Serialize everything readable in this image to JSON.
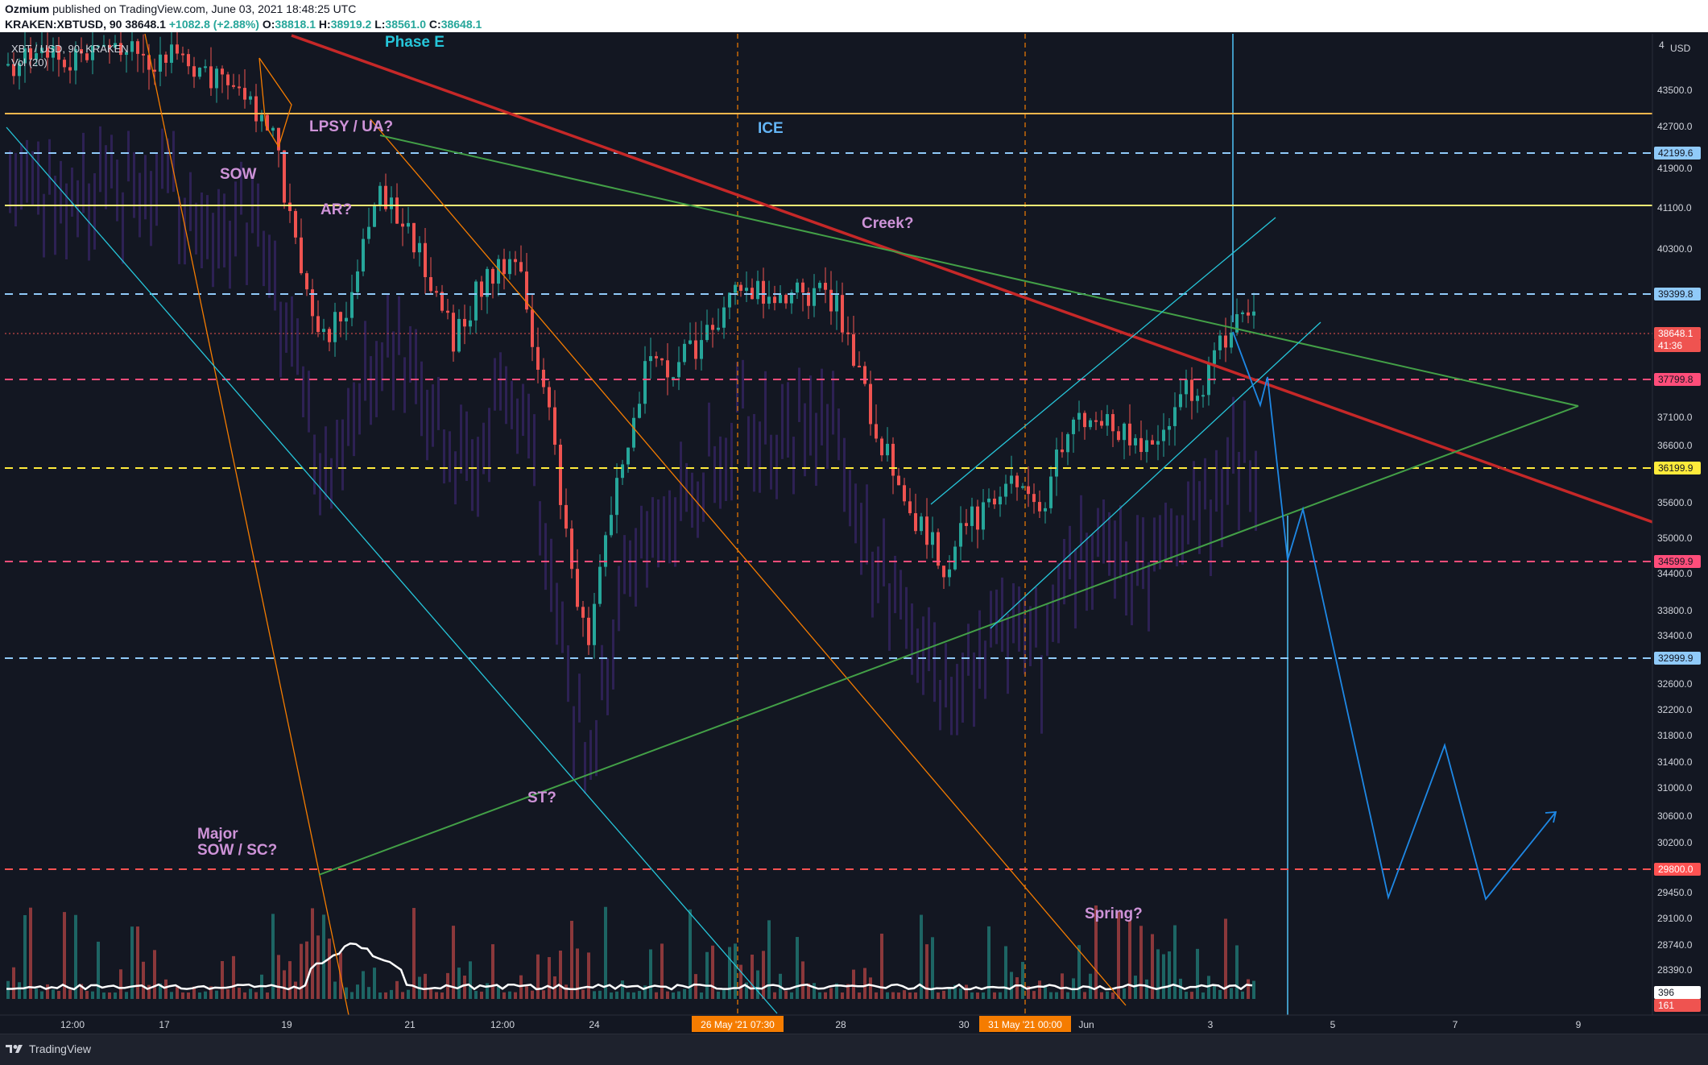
{
  "header": {
    "author": "Ozmium",
    "published": "published on TradingView.com, June 03, 2021 18:48:25 UTC",
    "symbol": "KRAKEN:XBTUSD, 90",
    "last": "38648.1",
    "change": "+1082.8 (+2.88%)",
    "o_label": "O:",
    "o": "38818.1",
    "h_label": "H:",
    "h": "38919.2",
    "l_label": "L:",
    "l": "38561.0",
    "c_label": "C:",
    "c": "38648.1"
  },
  "legend": {
    "title": "XBT / USD, 90, KRAKEN",
    "vol": "Vol (20)"
  },
  "price_axis": {
    "currency": "USD",
    "top_cut": "4",
    "ticks": [
      "43500.0",
      "42700.0",
      "41900.0",
      "41100.0",
      "40300.0",
      "37100.0",
      "36600.0",
      "35600.0",
      "35000.0",
      "34400.0",
      "33800.0",
      "33400.0",
      "32600.0",
      "32200.0",
      "31800.0",
      "31400.0",
      "31000.0",
      "30600.0",
      "30200.0",
      "29450.0",
      "29100.0",
      "28740.0",
      "28390.0"
    ],
    "labels": [
      {
        "text": "42199.6",
        "color": "#90caf9",
        "fg": "#131722"
      },
      {
        "text": "39399.8",
        "color": "#90caf9",
        "fg": "#131722"
      },
      {
        "text": "38648.1",
        "color": "#ef5350",
        "fg": "#ffffff"
      },
      {
        "text": "41:36",
        "color": "#ef5350",
        "fg": "#ffffff"
      },
      {
        "text": "37799.8",
        "color": "#ff4d7a",
        "fg": "#131722"
      },
      {
        "text": "36199.9",
        "color": "#ffeb3b",
        "fg": "#131722"
      },
      {
        "text": "34599.9",
        "color": "#ff4d7a",
        "fg": "#131722"
      },
      {
        "text": "32999.9",
        "color": "#90caf9",
        "fg": "#131722"
      },
      {
        "text": "29800.0",
        "color": "#ff5252",
        "fg": "#ffffff"
      },
      {
        "text": "396",
        "color": "#ffffff",
        "fg": "#131722"
      },
      {
        "text": "161",
        "color": "#ef5350",
        "fg": "#ffffff"
      }
    ]
  },
  "time_axis": {
    "ticks": [
      "12:00",
      "17",
      "19",
      "21",
      "12:00",
      "24",
      "28",
      "30",
      "Jun",
      "3",
      "5",
      "7",
      "9"
    ],
    "highlights": [
      "26 May '21   07:30",
      "31 May '21   00:00"
    ]
  },
  "annotations": [
    "Phase E",
    "LPSY / UA?",
    "ICE",
    "SOW",
    "AR?",
    "Creek?",
    "ST?",
    "Major",
    "SOW / SC?",
    "Spring?"
  ],
  "footer": {
    "brand": "TradingView"
  },
  "colors": {
    "bg": "#131722",
    "up": "#26a69a",
    "down": "#ef5350",
    "annotation": "#ce93d8",
    "phase": "#26c6da",
    "ice": "#64b5f6",
    "trend_red": "#c62828",
    "trend_green": "#43a047"
  }
}
